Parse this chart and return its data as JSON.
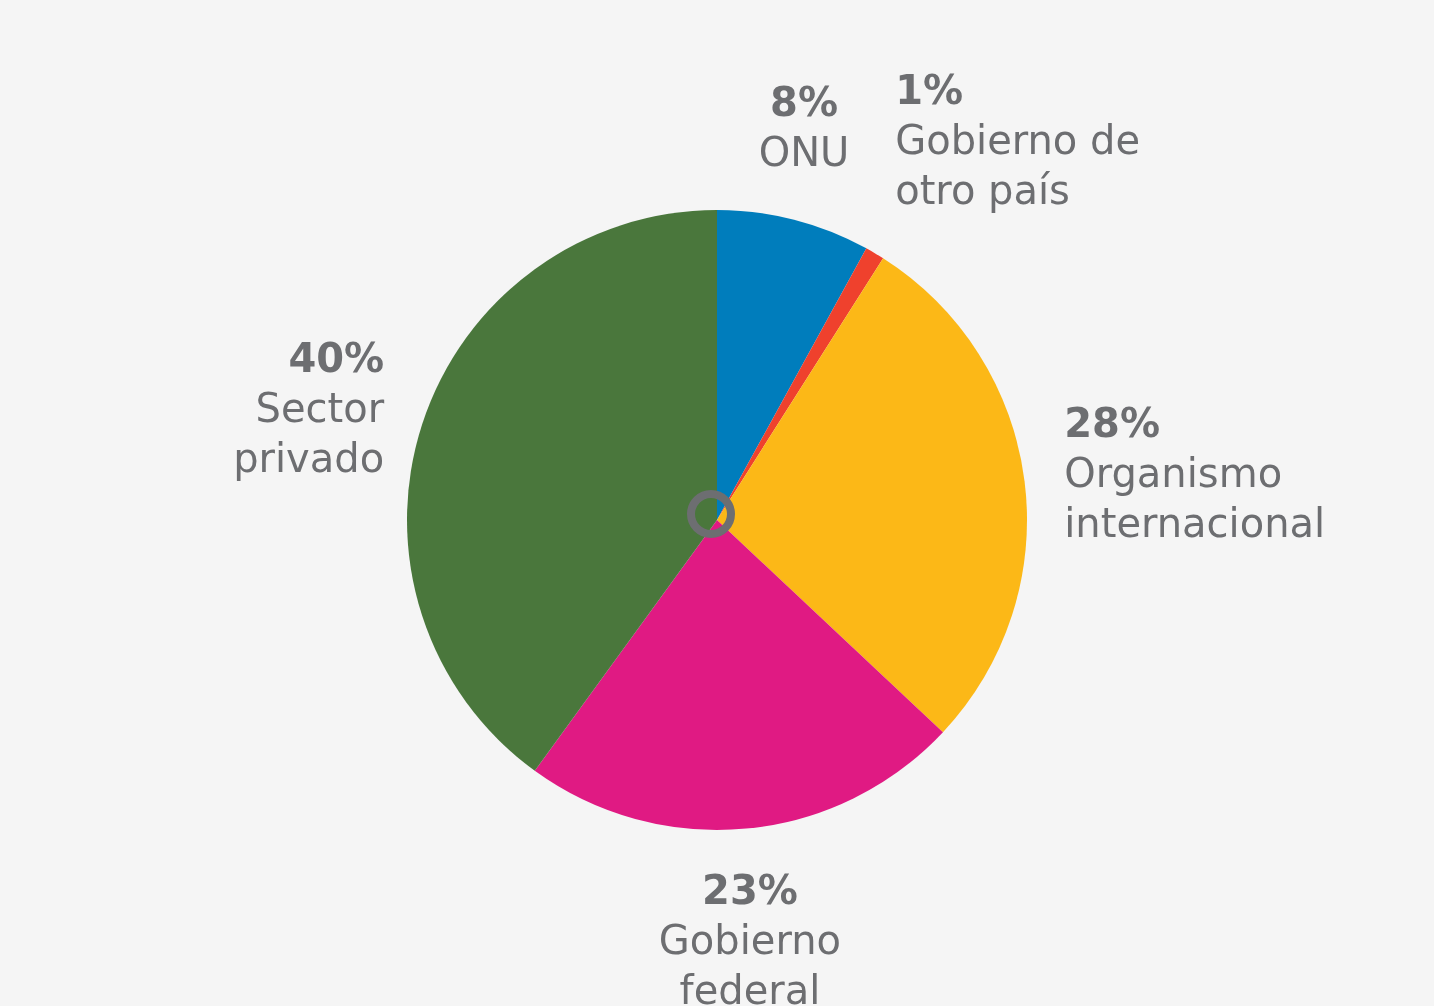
{
  "chart_data": {
    "type": "pie",
    "categories": [
      "ONU",
      "Gobierno de otro país",
      "Organismo internacional",
      "Gobierno federal",
      "Sector privado"
    ],
    "values": [
      8,
      1,
      28,
      23,
      40
    ],
    "value_labels": [
      "8%",
      "1%",
      "28%",
      "23%",
      "40%"
    ],
    "colors": [
      "#007dbc",
      "#ef412d",
      "#fcb817",
      "#e01a83",
      "#4a773c"
    ],
    "legend": false
  }
}
